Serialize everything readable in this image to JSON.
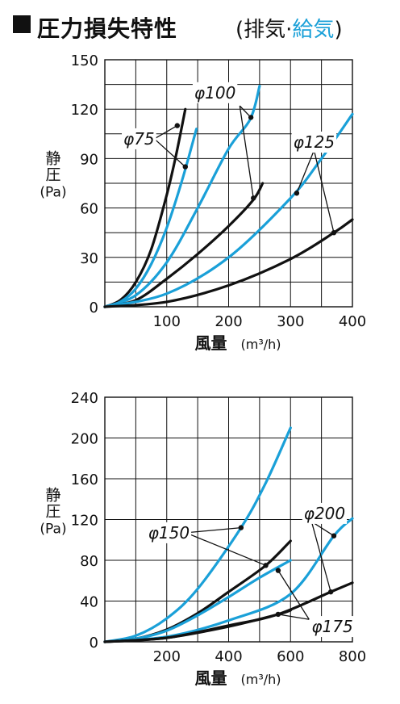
{
  "header": {
    "title": "圧力損失特性",
    "sub_open": "(排気·",
    "sub_supply": "給気",
    "sub_close": ")"
  },
  "colors": {
    "exhaust": "#111111",
    "supply": "#1aa0d8",
    "grid": "#111111"
  },
  "chart_data": [
    {
      "type": "line",
      "xlabel": "風量",
      "xunit": "(m³/h)",
      "ylabel_line1": "静",
      "ylabel_line2": "圧",
      "ylabel_line3": "(Pa)",
      "xlim": [
        0,
        400
      ],
      "ylim": [
        0,
        150
      ],
      "xticks": [
        0,
        50,
        100,
        150,
        200,
        250,
        300,
        350,
        400
      ],
      "xtick_labels": [
        "",
        "",
        "100",
        "",
        "200",
        "",
        "300",
        "",
        "400"
      ],
      "yticks": [
        0,
        15,
        30,
        45,
        60,
        75,
        90,
        105,
        120,
        135,
        150
      ],
      "ytick_labels": [
        "0",
        "",
        "30",
        "",
        "60",
        "",
        "90",
        "",
        "120",
        "",
        "150"
      ],
      "series": [
        {
          "kind": "exhaust",
          "points": [
            [
              0,
              0
            ],
            [
              25,
              4
            ],
            [
              50,
              15
            ],
            [
              75,
              35
            ],
            [
              100,
              68
            ],
            [
              115,
              92
            ],
            [
              130,
              120
            ]
          ]
        },
        {
          "kind": "supply",
          "points": [
            [
              0,
              0
            ],
            [
              25,
              3
            ],
            [
              50,
              11
            ],
            [
              75,
              26
            ],
            [
              100,
              48
            ],
            [
              125,
              77
            ],
            [
              148,
              108
            ]
          ]
        },
        {
          "kind": "supply",
          "points": [
            [
              0,
              0
            ],
            [
              50,
              7
            ],
            [
              100,
              27
            ],
            [
              150,
              60
            ],
            [
              200,
              96
            ],
            [
              235,
              114
            ],
            [
              250,
              134
            ]
          ]
        },
        {
          "kind": "exhaust",
          "points": [
            [
              0,
              0
            ],
            [
              50,
              4
            ],
            [
              100,
              17
            ],
            [
              150,
              32
            ],
            [
              200,
              49
            ],
            [
              240,
              65
            ],
            [
              255,
              75
            ]
          ]
        },
        {
          "kind": "supply",
          "points": [
            [
              0,
              0
            ],
            [
              100,
              8
            ],
            [
              200,
              30
            ],
            [
              300,
              66
            ],
            [
              350,
              90
            ],
            [
              400,
              117
            ]
          ]
        },
        {
          "kind": "exhaust",
          "points": [
            [
              0,
              0
            ],
            [
              100,
              3
            ],
            [
              200,
              13
            ],
            [
              300,
              29
            ],
            [
              370,
              45
            ],
            [
              400,
              53
            ]
          ]
        }
      ],
      "markers": [
        [
          117,
          110
        ],
        [
          130,
          85
        ],
        [
          236,
          115
        ],
        [
          240,
          66
        ],
        [
          310,
          69
        ],
        [
          370,
          45
        ]
      ],
      "labels": [
        {
          "text": "φ75",
          "x": 30,
          "y": 102,
          "anchor": "start",
          "leaders": [
            [
              117,
              110
            ],
            [
              130,
              85
            ]
          ],
          "from": [
            80,
            102
          ]
        },
        {
          "text": "φ100",
          "x": 178,
          "y": 130,
          "anchor": "middle",
          "leaders": [
            [
              236,
              115
            ],
            [
              240,
              66
            ]
          ],
          "from": [
            218,
            122
          ]
        },
        {
          "text": "φ125",
          "x": 338,
          "y": 100,
          "anchor": "middle",
          "leaders": [
            [
              310,
              69
            ],
            [
              370,
              45
            ]
          ],
          "from": [
            338,
            95
          ]
        }
      ]
    },
    {
      "type": "line",
      "xlabel": "風量",
      "xunit": "(m³/h)",
      "ylabel_line1": "静",
      "ylabel_line2": "圧",
      "ylabel_line3": "(Pa)",
      "xlim": [
        0,
        800
      ],
      "ylim": [
        0,
        240
      ],
      "xticks": [
        0,
        100,
        200,
        300,
        400,
        500,
        600,
        700,
        800
      ],
      "xtick_labels": [
        "",
        "",
        "200",
        "",
        "400",
        "",
        "600",
        "",
        "800"
      ],
      "yticks": [
        0,
        40,
        80,
        120,
        160,
        200,
        240
      ],
      "ytick_labels": [
        "0",
        "40",
        "80",
        "120",
        "160",
        "200",
        "240"
      ],
      "series": [
        {
          "kind": "supply",
          "points": [
            [
              0,
              0
            ],
            [
              100,
              6
            ],
            [
              200,
              23
            ],
            [
              300,
              52
            ],
            [
              440,
              112
            ],
            [
              520,
              156
            ],
            [
              600,
              210
            ]
          ]
        },
        {
          "kind": "exhaust",
          "points": [
            [
              0,
              0
            ],
            [
              100,
              3
            ],
            [
              200,
              12
            ],
            [
              300,
              28
            ],
            [
              400,
              49
            ],
            [
              520,
              75
            ],
            [
              600,
              99
            ]
          ]
        },
        {
          "kind": "supply",
          "points": [
            [
              0,
              0
            ],
            [
              100,
              3
            ],
            [
              200,
              11
            ],
            [
              300,
              26
            ],
            [
              400,
              44
            ],
            [
              500,
              63
            ],
            [
              600,
              80
            ]
          ]
        },
        {
          "kind": "supply",
          "points": [
            [
              0,
              0
            ],
            [
              200,
              5
            ],
            [
              400,
              21
            ],
            [
              600,
              47
            ],
            [
              740,
              104
            ],
            [
              800,
              121
            ]
          ]
        },
        {
          "kind": "exhaust",
          "points": [
            [
              0,
              0
            ],
            [
              200,
              4
            ],
            [
              400,
              16
            ],
            [
              560,
              27
            ],
            [
              730,
              49
            ],
            [
              800,
              58
            ]
          ]
        },
        {
          "kind": "exhaust",
          "points": [
            [
              0,
              0
            ],
            [
              200,
              4
            ],
            [
              400,
              15
            ],
            [
              560,
              27
            ],
            [
              600,
              31
            ]
          ]
        }
      ],
      "markers": [
        [
          440,
          112
        ],
        [
          520,
          75
        ],
        [
          560,
          70
        ],
        [
          740,
          104
        ],
        [
          730,
          49
        ],
        [
          560,
          27
        ]
      ],
      "labels": [
        {
          "text": "φ150",
          "x": 140,
          "y": 107,
          "anchor": "start",
          "leaders": [
            [
              440,
              112
            ],
            [
              520,
              75
            ]
          ],
          "from": [
            262,
            107
          ]
        },
        {
          "text": "φ200",
          "x": 643,
          "y": 126,
          "anchor": "start",
          "leaders": [
            [
              740,
              104
            ],
            [
              730,
              49
            ]
          ],
          "from": [
            668,
            118
          ]
        },
        {
          "text": "φ175",
          "x": 668,
          "y": 15,
          "anchor": "start",
          "leaders": [
            [
              560,
              70
            ],
            [
              560,
              27
            ]
          ],
          "from": [
            660,
            22
          ]
        }
      ]
    }
  ]
}
